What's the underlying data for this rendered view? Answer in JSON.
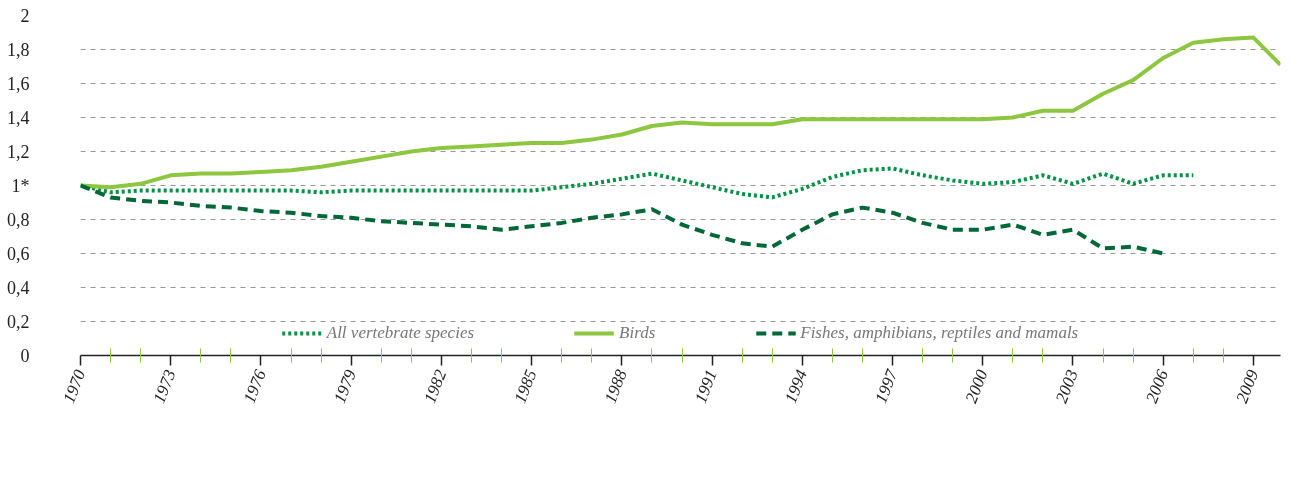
{
  "chart_data": {
    "type": "line",
    "x": [
      1970,
      1971,
      1972,
      1973,
      1974,
      1975,
      1976,
      1977,
      1978,
      1979,
      1980,
      1981,
      1982,
      1983,
      1984,
      1985,
      1986,
      1987,
      1988,
      1989,
      1990,
      1991,
      1992,
      1993,
      1994,
      1995,
      1996,
      1997,
      1998,
      1999,
      2000,
      2001,
      2002,
      2003,
      2004,
      2005,
      2006,
      2007,
      2008,
      2009,
      2009.9
    ],
    "series": [
      {
        "name": "All vertebrate species",
        "color": "#009245",
        "line_style": "dotted",
        "values": [
          1.0,
          0.96,
          0.97,
          0.97,
          0.97,
          0.97,
          0.97,
          0.97,
          0.96,
          0.97,
          0.97,
          0.97,
          0.97,
          0.97,
          0.97,
          0.97,
          0.99,
          1.01,
          1.04,
          1.07,
          1.03,
          0.99,
          0.95,
          0.93,
          0.98,
          1.05,
          1.09,
          1.1,
          1.06,
          1.03,
          1.01,
          1.02,
          1.06,
          1.01,
          1.07,
          1.01,
          1.06,
          1.06,
          null,
          null,
          null
        ]
      },
      {
        "name": "Birds",
        "color": "#8dc63f",
        "line_style": "solid",
        "values": [
          1.0,
          0.99,
          1.01,
          1.06,
          1.07,
          1.07,
          1.08,
          1.09,
          1.11,
          1.14,
          1.17,
          1.2,
          1.22,
          1.23,
          1.24,
          1.25,
          1.25,
          1.27,
          1.3,
          1.35,
          1.37,
          1.36,
          1.36,
          1.36,
          1.39,
          1.39,
          1.39,
          1.39,
          1.39,
          1.39,
          1.39,
          1.4,
          1.44,
          1.44,
          1.54,
          1.62,
          1.75,
          1.84,
          1.86,
          1.87,
          1.71
        ]
      },
      {
        "name": "Fishes, amphibians, reptiles and mamals",
        "color": "#006837",
        "line_style": "dashed",
        "values": [
          1.0,
          0.93,
          0.91,
          0.9,
          0.88,
          0.87,
          0.85,
          0.84,
          0.82,
          0.81,
          0.79,
          0.78,
          0.77,
          0.76,
          0.74,
          0.76,
          0.78,
          0.81,
          0.83,
          0.86,
          0.77,
          0.71,
          0.66,
          0.64,
          0.74,
          0.83,
          0.87,
          0.84,
          0.78,
          0.74,
          0.74,
          0.77,
          0.71,
          0.74,
          0.63,
          0.64,
          0.6,
          null,
          null,
          null,
          null
        ]
      }
    ],
    "xlim": [
      1970,
      2009.9
    ],
    "xticks": [
      1970,
      1973,
      1976,
      1979,
      1982,
      1985,
      1988,
      1991,
      1994,
      1997,
      2000,
      2003,
      2006,
      2009
    ],
    "ylim": [
      0,
      2
    ],
    "yticks": [
      {
        "value": 0,
        "label": "0"
      },
      {
        "value": 0.2,
        "label": "0,2"
      },
      {
        "value": 0.4,
        "label": "0,4"
      },
      {
        "value": 0.6,
        "label": "0,6"
      },
      {
        "value": 0.8,
        "label": "0,8"
      },
      {
        "value": 1,
        "label": "1*"
      },
      {
        "value": 1.2,
        "label": "1,2"
      },
      {
        "value": 1.4,
        "label": "1,4"
      },
      {
        "value": 1.6,
        "label": "1,6"
      },
      {
        "value": 1.8,
        "label": "1,8"
      },
      {
        "value": 2,
        "label": "2"
      }
    ],
    "grid": "y",
    "legend": "bottom"
  }
}
